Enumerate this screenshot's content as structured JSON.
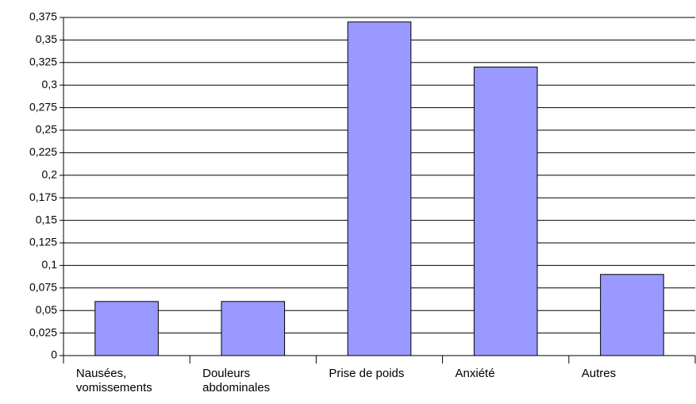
{
  "chart_data": {
    "type": "bar",
    "categories": [
      "Nausées, vomissements",
      "Douleurs abdominales",
      "Prise de poids",
      "Anxiété",
      "Autres"
    ],
    "values": [
      0.06,
      0.06,
      0.37,
      0.32,
      0.09
    ],
    "color": "#9999ff",
    "ylim": [
      0,
      0.375
    ],
    "yticks": [
      0,
      {
        "value": 0.025,
        "label": "0,025"
      },
      {
        "value": 0.05,
        "label": "0,05"
      },
      {
        "value": 0.075,
        "label": "0,075"
      },
      {
        "value": 0.1,
        "label": "0,1"
      },
      {
        "value": 0.125,
        "label": "0,125"
      },
      {
        "value": 0.15,
        "label": "0,15"
      },
      {
        "value": 0.175,
        "label": "0,175"
      },
      {
        "value": 0.2,
        "label": "0,2"
      },
      {
        "value": 0.225,
        "label": "0,225"
      },
      {
        "value": 0.25,
        "label": "0,25"
      },
      {
        "value": 0.275,
        "label": "0,275"
      },
      {
        "value": 0.3,
        "label": "0,3"
      },
      {
        "value": 0.325,
        "label": "0,325"
      },
      {
        "value": 0.35,
        "label": "0,35"
      },
      {
        "value": 0.375,
        "label": "0,375"
      }
    ],
    "grid": true
  }
}
